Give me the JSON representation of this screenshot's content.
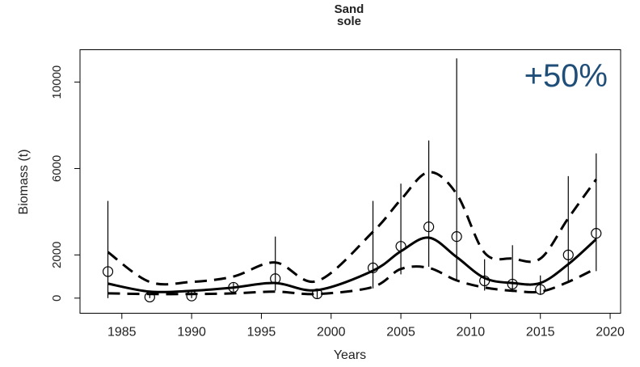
{
  "chart_data": {
    "type": "line",
    "title": [
      "Sand",
      "sole"
    ],
    "annotation": "+50%",
    "annotation_color": "#1f4e79",
    "x_label": "Years",
    "y_label": "Biomass (t)",
    "xlim": [
      1982,
      2020.75
    ],
    "ylim": [
      -700,
      11500
    ],
    "xticks": [
      1985,
      1990,
      1995,
      2000,
      2005,
      2010,
      2015,
      2020
    ],
    "yticks": [
      0,
      2000,
      6000,
      10000
    ],
    "x": [
      1984,
      1987,
      1990,
      1993,
      1996,
      1999,
      2003,
      2005,
      2007,
      2009,
      2011,
      2013,
      2015,
      2017,
      2019
    ],
    "fit": {
      "color": "#000000",
      "values": [
        670,
        300,
        340,
        490,
        700,
        370,
        1270,
        2170,
        2800,
        1900,
        930,
        700,
        700,
        1570,
        2730
      ]
    },
    "upper_band": {
      "color": "#000000",
      "values": [
        2130,
        750,
        750,
        1000,
        1650,
        790,
        3070,
        4560,
        5830,
        4820,
        2100,
        1830,
        1830,
        3700,
        5500
      ]
    },
    "lower_band": {
      "color": "#000000",
      "values": [
        220,
        190,
        190,
        220,
        300,
        190,
        520,
        1350,
        1400,
        820,
        490,
        340,
        300,
        750,
        1380
      ]
    },
    "observations": {
      "color": "#000000",
      "values": [
        1230,
        50,
        100,
        500,
        900,
        200,
        1400,
        2400,
        3300,
        2850,
        800,
        650,
        400,
        2000,
        3000
      ],
      "lower": [
        0,
        0,
        0,
        300,
        350,
        0,
        450,
        1100,
        1450,
        780,
        350,
        340,
        150,
        720,
        1250
      ],
      "upper": [
        4500,
        150,
        300,
        700,
        2850,
        400,
        4500,
        5300,
        7300,
        11100,
        1800,
        2450,
        1050,
        5650,
        6700
      ]
    }
  }
}
